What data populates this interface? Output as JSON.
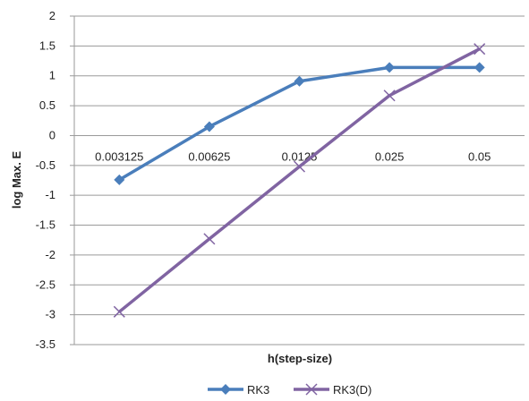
{
  "chart_data": {
    "type": "line",
    "title": "",
    "xlabel": "h(step-size)",
    "ylabel": "log Max. E",
    "categories": [
      "0.003125",
      "0.00625",
      "0.0125",
      "0.025",
      "0.05"
    ],
    "ylim": [
      -3.5,
      2
    ],
    "yticks": [
      2,
      1.5,
      1,
      0.5,
      0,
      -0.5,
      -1,
      -1.5,
      -2,
      -2.5,
      -3,
      -3.5
    ],
    "grid": true,
    "legend_position": "bottom",
    "series": [
      {
        "name": "RK3",
        "values": [
          -0.74,
          0.15,
          0.91,
          1.14,
          1.14
        ],
        "color": "#4A7EBB",
        "marker": "diamond"
      },
      {
        "name": "RK3(D)",
        "values": [
          -2.95,
          -1.73,
          -0.52,
          0.67,
          1.45
        ],
        "color": "#8064A2",
        "marker": "x"
      }
    ]
  }
}
